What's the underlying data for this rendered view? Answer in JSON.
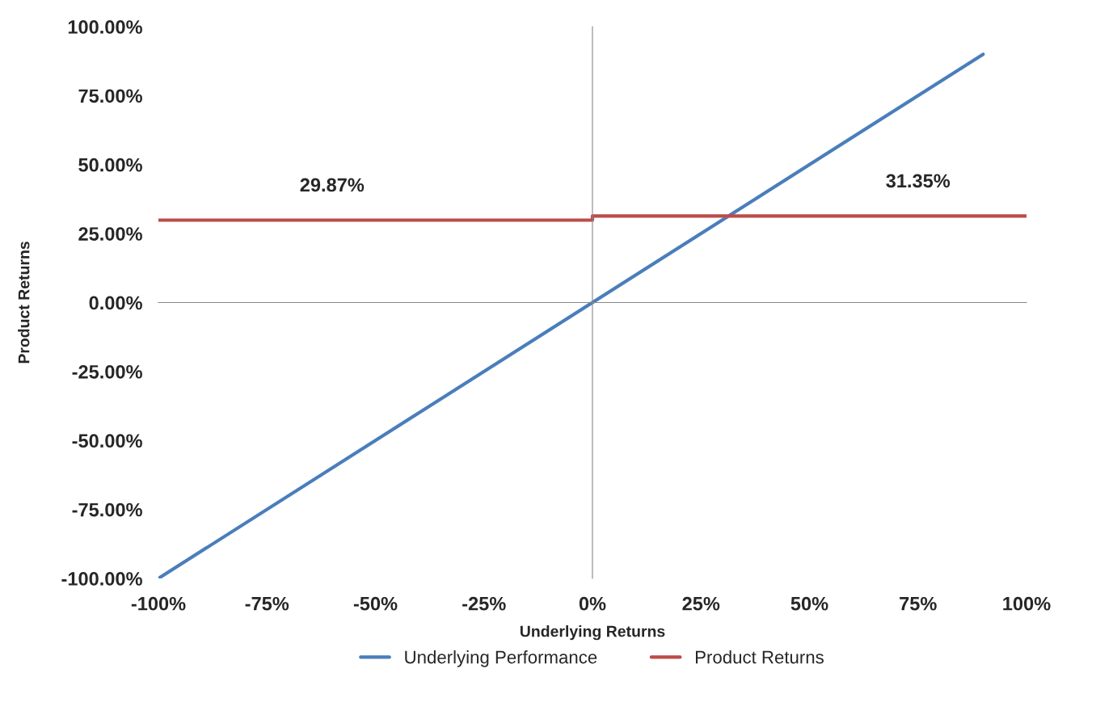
{
  "chart_data": {
    "type": "line",
    "xlabel": "Underlying Returns",
    "ylabel": "Product Returns",
    "series": [
      {
        "name": "Underlying Performance",
        "color": "#4a7ebb",
        "x": [
          -100,
          90
        ],
        "values": [
          -100,
          90
        ]
      },
      {
        "name": "Product Returns",
        "color": "#be4b48",
        "x": [
          -100,
          0,
          0,
          100
        ],
        "values": [
          29.87,
          29.87,
          31.35,
          31.35
        ]
      }
    ],
    "annotations": [
      {
        "text": "29.87%",
        "x": -60,
        "y": 29.87
      },
      {
        "text": "31.35%",
        "x": 75,
        "y": 31.35
      }
    ],
    "xlim": [
      -100,
      100
    ],
    "xticks": [
      {
        "value": -100,
        "label": "-100%"
      },
      {
        "value": -75,
        "label": "-75%"
      },
      {
        "value": -50,
        "label": "-50%"
      },
      {
        "value": -25,
        "label": "-25%"
      },
      {
        "value": 0,
        "label": "0%"
      },
      {
        "value": 25,
        "label": "25%"
      },
      {
        "value": 50,
        "label": "50%"
      },
      {
        "value": 75,
        "label": "75%"
      },
      {
        "value": 100,
        "label": "100%"
      }
    ],
    "ylim": [
      -100,
      100
    ],
    "yticks": [
      {
        "value": -100,
        "label": "-100.00%"
      },
      {
        "value": -75,
        "label": "-75.00%"
      },
      {
        "value": -50,
        "label": "-50.00%"
      },
      {
        "value": -25,
        "label": "-25.00%"
      },
      {
        "value": 0,
        "label": "0.00%"
      },
      {
        "value": 25,
        "label": "25.00%"
      },
      {
        "value": 50,
        "label": "50.00%"
      },
      {
        "value": 75,
        "label": "75.00%"
      },
      {
        "value": 100,
        "label": "100.00%"
      }
    ],
    "legend": "bottom",
    "marker": "none",
    "line_style": "solid"
  }
}
